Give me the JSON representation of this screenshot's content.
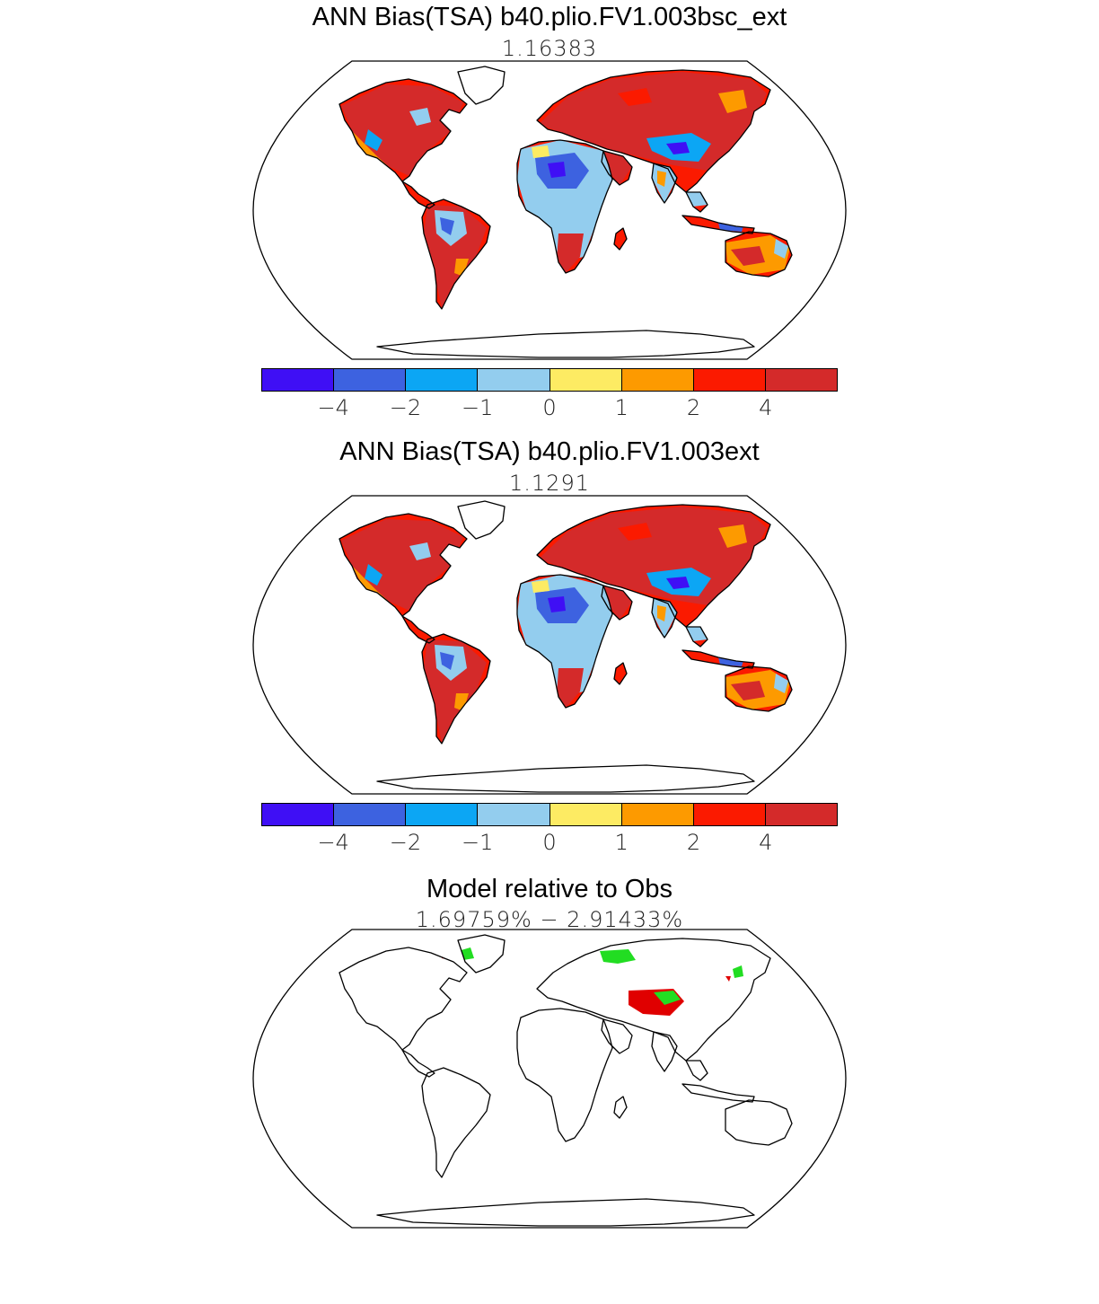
{
  "panels": [
    {
      "title": "ANN Bias(TSA) b40.plio.FV1.003bsc_ext",
      "subtitle": "1.16383",
      "kind": "bias"
    },
    {
      "title": "ANN Bias(TSA) b40.plio.FV1.003ext",
      "subtitle": "1.1291",
      "kind": "bias"
    },
    {
      "title": "Model relative to Obs",
      "subtitle": "1.69759% − 2.91433%",
      "kind": "relative"
    }
  ],
  "colorbar": {
    "colors": [
      "#3f0ff5",
      "#3d62e0",
      "#0ca6f4",
      "#93cdee",
      "#fdeb63",
      "#fd9a00",
      "#fb1a00",
      "#d42a2a"
    ],
    "labels": [
      "−4",
      "−2",
      "−1",
      "0",
      "1",
      "2",
      "4"
    ]
  },
  "relative_colors": {
    "red": "#e00000",
    "green": "#22dd22"
  }
}
